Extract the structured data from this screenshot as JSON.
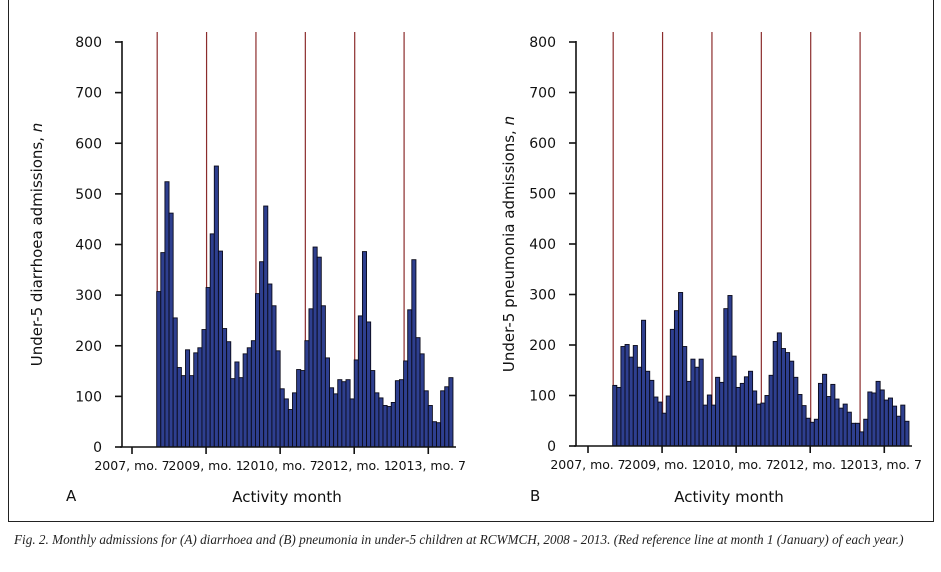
{
  "caption": "Fig. 2. Monthly admissions for (A) diarrhoea and (B) pneumonia in under-5 children at RCWMCH, 2008 - 2013. (Red reference line at month 1 (January) of each year.)",
  "colors": {
    "bar": "#2e3f8f",
    "bar_outline": "#0a0a1a",
    "reference_line": "#8b2c2c",
    "axis": "#111111"
  },
  "chart_data": [
    {
      "type": "bar",
      "panel": "A",
      "xlabel": "Activity month",
      "ylabel": "Under-5 diarrhoea admissions, ",
      "ylabel_italic": "n",
      "ylim": [
        0,
        800
      ],
      "yticks": [
        0,
        100,
        200,
        300,
        400,
        500,
        600,
        700,
        800
      ],
      "xtick_labels": [
        "2007, mo. 7",
        "2009, mo. 1",
        "2010, mo. 7",
        "2012, mo. 1",
        "2013, mo. 7"
      ],
      "reference_lines": [
        "2008, mo. 1",
        "2009, mo. 1",
        "2010, mo. 1",
        "2011, mo. 1",
        "2012, mo. 1",
        "2013, mo. 1"
      ],
      "grid": false,
      "values_by_year": {
        "2008": [
          307,
          384,
          524,
          462,
          255,
          157,
          141,
          192,
          141,
          186,
          196,
          232
        ],
        "2009": [
          315,
          421,
          555,
          387,
          234,
          208,
          135,
          168,
          137,
          184,
          196,
          210
        ],
        "2010": [
          303,
          366,
          476,
          322,
          279,
          190,
          115,
          95,
          74,
          107,
          153,
          151
        ],
        "2011": [
          210,
          273,
          395,
          375,
          279,
          176,
          117,
          105,
          133,
          129,
          133,
          95
        ],
        "2012": [
          172,
          259,
          386,
          247,
          151,
          107,
          97,
          82,
          80,
          88,
          131,
          133
        ],
        "2013": [
          170,
          271,
          370,
          216,
          184,
          111,
          82,
          50,
          48,
          111,
          119,
          137
        ]
      }
    },
    {
      "type": "bar",
      "panel": "B",
      "xlabel": "Activity month",
      "ylabel": "Under-5 pneumonia admissions, ",
      "ylabel_italic": "n",
      "ylim": [
        0,
        800
      ],
      "yticks": [
        0,
        100,
        200,
        300,
        400,
        500,
        600,
        700,
        800
      ],
      "xtick_labels": [
        "2007, mo. 7",
        "2009, mo. 1",
        "2010, mo. 7",
        "2012, mo. 1",
        "2013, mo. 7"
      ],
      "reference_lines": [
        "2008, mo. 1",
        "2009, mo. 1",
        "2010, mo. 1",
        "2011, mo. 1",
        "2012, mo. 1",
        "2013, mo. 1"
      ],
      "grid": false,
      "values_by_year": {
        "2008": [
          120,
          116,
          197,
          201,
          176,
          199,
          156,
          249,
          148,
          130,
          97,
          87
        ],
        "2009": [
          65,
          99,
          231,
          268,
          304,
          197,
          128,
          172,
          156,
          172,
          81,
          101
        ],
        "2010": [
          81,
          136,
          126,
          272,
          298,
          178,
          116,
          124,
          137,
          148,
          109,
          83
        ],
        "2011": [
          85,
          100,
          140,
          207,
          224,
          193,
          185,
          168,
          136,
          102,
          80,
          55
        ],
        "2012": [
          47,
          53,
          124,
          142,
          98,
          122,
          93,
          75,
          83,
          67,
          45,
          45
        ],
        "2013": [
          28,
          53,
          107,
          105,
          128,
          111,
          91,
          95,
          79,
          59,
          81,
          49
        ]
      }
    }
  ]
}
